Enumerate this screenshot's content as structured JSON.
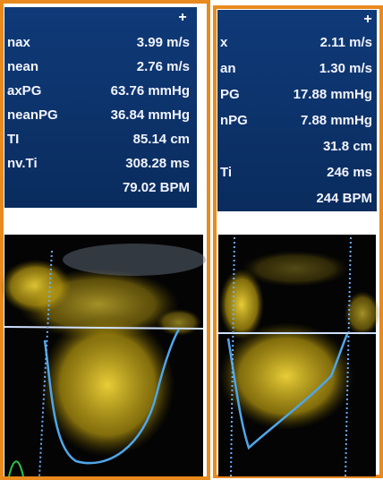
{
  "panels": [
    {
      "rows": [
        {
          "label": "nax",
          "value": "3.99 m/s"
        },
        {
          "label": "nean",
          "value": "2.76 m/s"
        },
        {
          "label": "axPG",
          "value": "63.76 mmHg"
        },
        {
          "label": "neanPG",
          "value": "36.84 mmHg"
        },
        {
          "label": "TI",
          "value": "85.14 cm"
        },
        {
          "label": "nv.Ti",
          "value": "308.28 ms"
        },
        {
          "value": "79.02 BPM"
        }
      ]
    },
    {
      "rows": [
        {
          "label": "x",
          "value": "2.11 m/s"
        },
        {
          "label": "an",
          "value": "1.30 m/s"
        },
        {
          "label": "PG",
          "value": "17.88 mmHg"
        },
        {
          "label": "nPG",
          "value": "7.88 mmHg"
        },
        {
          "value": "31.8 cm"
        },
        {
          "label": "Ti",
          "value": "246 ms"
        },
        {
          "value": "244 BPM"
        }
      ]
    }
  ]
}
